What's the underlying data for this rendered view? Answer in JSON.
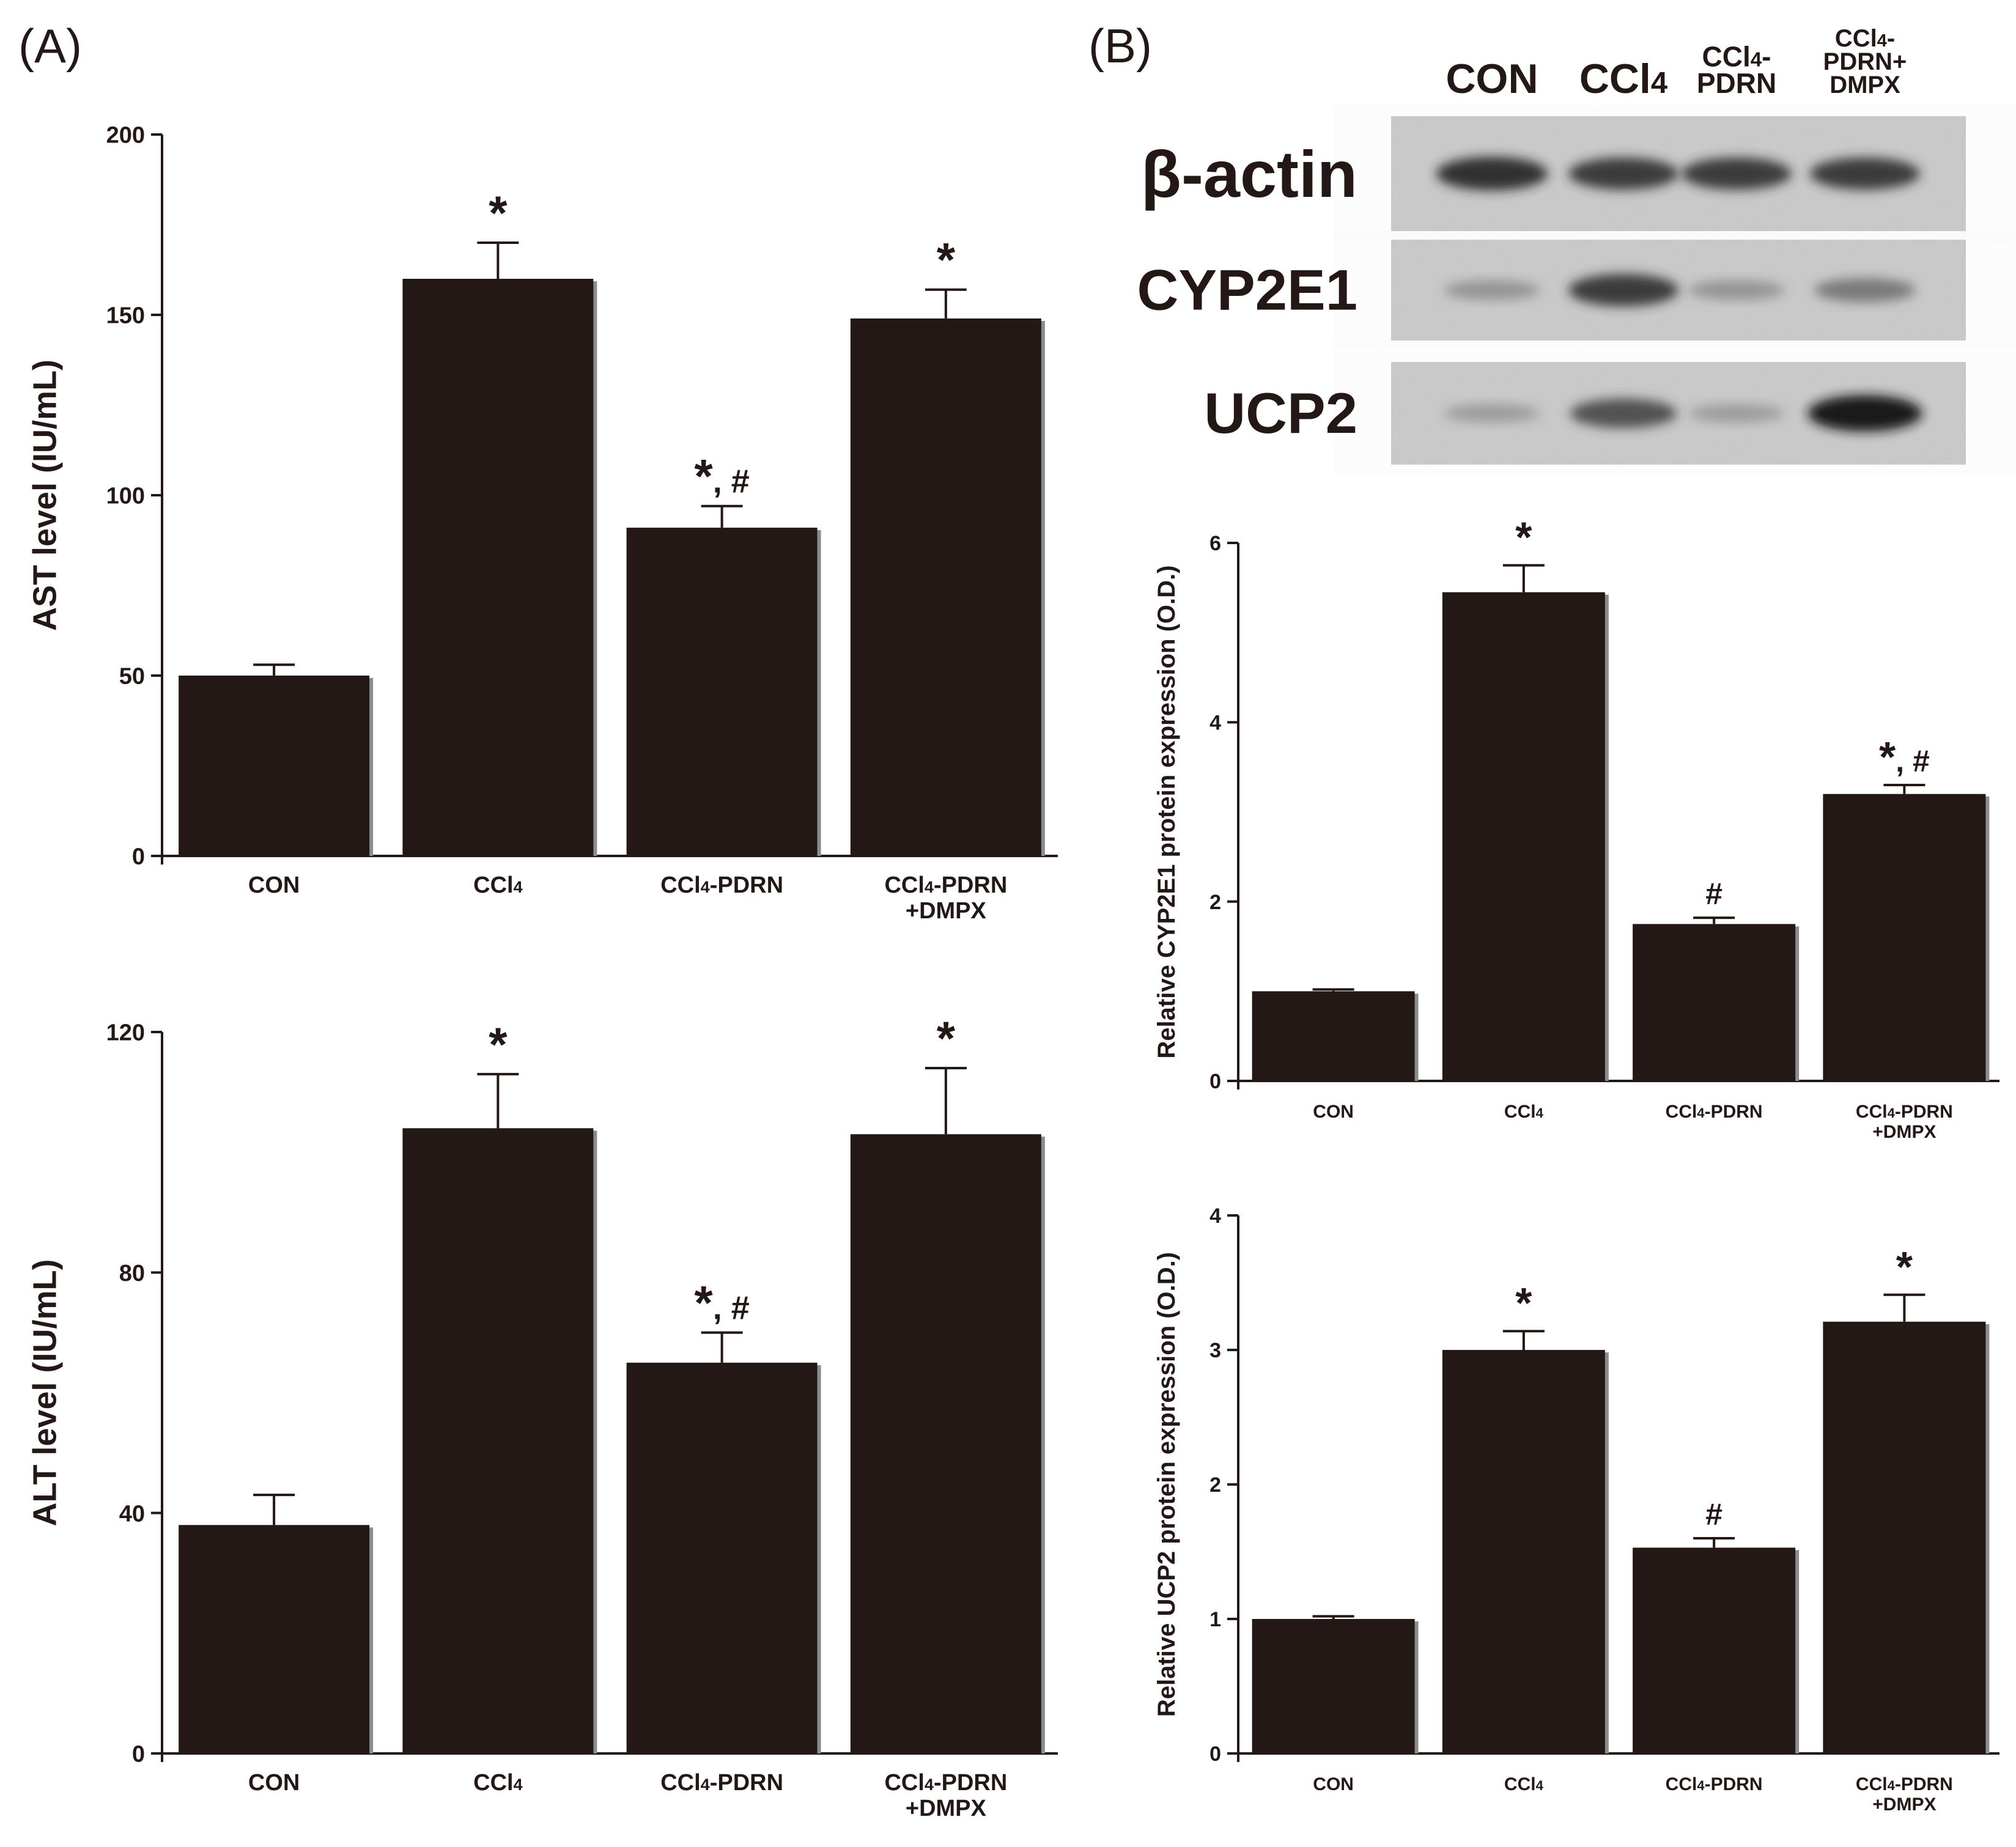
{
  "panels": {
    "A": "(A)",
    "B": "(B)"
  },
  "blot": {
    "lanes": [
      "CON",
      "CCl4",
      "CCl4-\nPDRN",
      "CCl4-\nPDRN+\nDMPX"
    ],
    "rows": [
      {
        "label": "β-actin",
        "intensity": [
          0.85,
          0.8,
          0.8,
          0.8
        ]
      },
      {
        "label": "CYP2E1",
        "intensity": [
          0.35,
          0.8,
          0.35,
          0.5
        ]
      },
      {
        "label": "UCP2",
        "intensity": [
          0.3,
          0.7,
          0.3,
          0.95
        ]
      }
    ]
  },
  "colors": {
    "bar": "#231815",
    "axis": "#231815"
  },
  "chart_data": [
    {
      "id": "ast",
      "type": "bar",
      "ylabel": "AST level (IU/mL)",
      "ylim": [
        0,
        200
      ],
      "yticks": [
        0,
        50,
        100,
        150,
        200
      ],
      "categories": [
        "CON",
        "CCl4",
        "CCl4-PDRN",
        "CCl4-PDRN\n+DMPX"
      ],
      "values": [
        50,
        160,
        91,
        149
      ],
      "errors": [
        3,
        10,
        6,
        8
      ],
      "annotations": [
        "",
        "*",
        "*, #",
        "*"
      ]
    },
    {
      "id": "alt",
      "type": "bar",
      "ylabel": "ALT level (IU/mL)",
      "ylim": [
        0,
        120
      ],
      "yticks": [
        0,
        40,
        80,
        120
      ],
      "categories": [
        "CON",
        "CCl4",
        "CCl4-PDRN",
        "CCl4-PDRN\n+DMPX"
      ],
      "values": [
        38,
        104,
        65,
        103
      ],
      "errors": [
        5,
        9,
        5,
        11
      ],
      "annotations": [
        "",
        "*",
        "*, #",
        "*"
      ]
    },
    {
      "id": "cyp",
      "type": "bar",
      "ylabel": "Relative CYP2E1 protein expression (O.D.)",
      "ylim": [
        0,
        6
      ],
      "yticks": [
        0,
        2,
        4,
        6
      ],
      "categories": [
        "CON",
        "CCl4",
        "CCl4-PDRN",
        "CCl4-PDRN\n+DMPX"
      ],
      "values": [
        1.0,
        5.45,
        1.75,
        3.2
      ],
      "errors": [
        0.02,
        0.3,
        0.07,
        0.1
      ],
      "annotations": [
        "",
        "*",
        "#",
        "*, #"
      ]
    },
    {
      "id": "ucp",
      "type": "bar",
      "ylabel": "Relative UCP2 protein expression (O.D.)",
      "ylim": [
        0,
        4
      ],
      "yticks": [
        0,
        1,
        2,
        3,
        4
      ],
      "categories": [
        "CON",
        "CCl4",
        "CCl4-PDRN",
        "CCl4-PDRN\n+DMPX"
      ],
      "values": [
        1.0,
        3.0,
        1.53,
        3.21
      ],
      "errors": [
        0.02,
        0.14,
        0.07,
        0.2
      ],
      "annotations": [
        "",
        "*",
        "#",
        "*"
      ]
    }
  ]
}
